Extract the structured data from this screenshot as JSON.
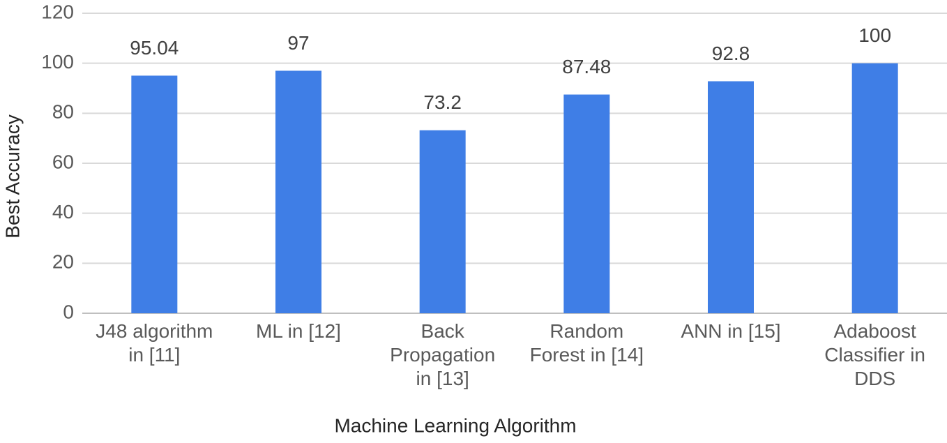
{
  "chart_data": {
    "type": "bar",
    "x_label": "Machine Learning Algorithm",
    "y_label": "Best Accuracy",
    "categories": [
      "J48 algorithm in [11]",
      "ML in [12]",
      "Back Propagation in [13]",
      "Random Forest in [14]",
      "ANN in [15]",
      "Adaboost Classifier in DDS"
    ],
    "values": [
      95.04,
      97,
      73.2,
      87.48,
      92.8,
      100
    ],
    "color": "#3f7ee6",
    "ylim": [
      0,
      120
    ],
    "yticks": [
      0,
      20,
      40,
      60,
      80,
      100,
      120
    ],
    "grid": true
  }
}
